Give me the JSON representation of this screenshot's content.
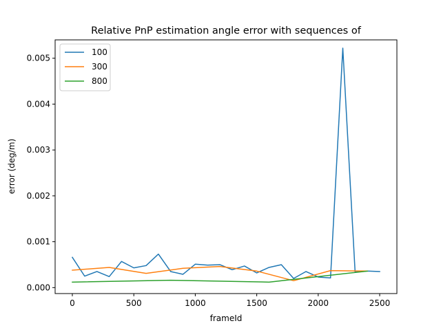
{
  "chart_data": {
    "type": "line",
    "title": "Relative PnP estimation angle error with sequences of",
    "xlabel": "frameId",
    "ylabel": "error (deg/m)",
    "xlim": [
      -140,
      2640
    ],
    "ylim": [
      -0.00013,
      0.0054
    ],
    "xticks": [
      0,
      500,
      1000,
      1500,
      2000,
      2500
    ],
    "yticks": [
      0.0,
      0.001,
      0.002,
      0.003,
      0.004,
      0.005
    ],
    "ytick_labels": [
      "0.000",
      "0.001",
      "0.002",
      "0.003",
      "0.004",
      "0.005"
    ],
    "grid": false,
    "legend_position": "top-left",
    "series": [
      {
        "name": "100",
        "color": "#1f77b4",
        "x": [
          0,
          100,
          200,
          300,
          400,
          500,
          600,
          700,
          800,
          900,
          1000,
          1100,
          1200,
          1300,
          1400,
          1500,
          1600,
          1700,
          1800,
          1900,
          2000,
          2100,
          2200,
          2300,
          2400,
          2500
        ],
        "y": [
          0.00066,
          0.00025,
          0.00035,
          0.00024,
          0.00057,
          0.00043,
          0.00048,
          0.00073,
          0.00035,
          0.00029,
          0.00051,
          0.00049,
          0.0005,
          0.00039,
          0.00047,
          0.00032,
          0.00044,
          0.0005,
          0.0002,
          0.00035,
          0.00023,
          0.00021,
          0.00522,
          0.00034,
          0.00036,
          0.00035
        ]
      },
      {
        "name": "300",
        "color": "#ff7f0e",
        "x": [
          0,
          300,
          600,
          900,
          1200,
          1500,
          1800,
          2100,
          2400
        ],
        "y": [
          0.00038,
          0.00044,
          0.00031,
          0.00042,
          0.00046,
          0.00036,
          0.00015,
          0.00037,
          0.00036
        ]
      },
      {
        "name": "800",
        "color": "#2ca02c",
        "x": [
          0,
          800,
          1600,
          2400
        ],
        "y": [
          0.00012,
          0.00016,
          0.00012,
          0.00036
        ]
      }
    ]
  }
}
